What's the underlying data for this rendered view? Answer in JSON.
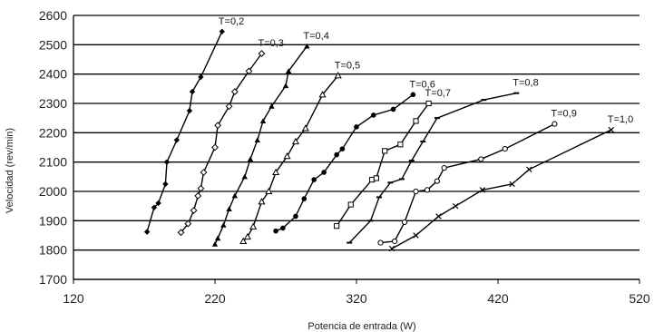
{
  "chart_data": {
    "type": "line",
    "xlabel": "Potencia de entrada (W)",
    "ylabel": "Velocidad (rev/min)",
    "xlim": [
      120,
      520
    ],
    "ylim": [
      1700,
      2600
    ],
    "x_ticks": [
      120,
      220,
      320,
      420,
      520
    ],
    "y_ticks": [
      1700,
      1800,
      1900,
      2000,
      2100,
      2200,
      2300,
      2400,
      2500,
      2600
    ],
    "grid": "horizontal",
    "series": [
      {
        "name": "T=0,2",
        "marker": "diamond-filled",
        "points": [
          [
            172,
            1862
          ],
          [
            177,
            1945
          ],
          [
            180,
            1960
          ],
          [
            185,
            2025
          ],
          [
            186,
            2100
          ],
          [
            193,
            2175
          ],
          [
            202,
            2275
          ],
          [
            204,
            2340
          ],
          [
            210,
            2390
          ],
          [
            225,
            2545
          ]
        ]
      },
      {
        "name": "T=0,3",
        "marker": "diamond-open",
        "points": [
          [
            196,
            1860
          ],
          [
            201,
            1890
          ],
          [
            205,
            1935
          ],
          [
            208,
            1985
          ],
          [
            210,
            2010
          ],
          [
            212,
            2065
          ],
          [
            220,
            2150
          ],
          [
            222,
            2225
          ],
          [
            230,
            2290
          ],
          [
            234,
            2340
          ],
          [
            244,
            2410
          ],
          [
            253,
            2470
          ]
        ]
      },
      {
        "name": "T=0,4",
        "marker": "triangle-filled",
        "points": [
          [
            220,
            1820
          ],
          [
            222,
            1840
          ],
          [
            226,
            1885
          ],
          [
            230,
            1940
          ],
          [
            234,
            1985
          ],
          [
            241,
            2050
          ],
          [
            245,
            2110
          ],
          [
            250,
            2175
          ],
          [
            254,
            2240
          ],
          [
            260,
            2290
          ],
          [
            270,
            2360
          ],
          [
            272,
            2410
          ],
          [
            285,
            2495
          ]
        ]
      },
      {
        "name": "T=0,5",
        "marker": "triangle-open",
        "points": [
          [
            240,
            1830
          ],
          [
            243,
            1845
          ],
          [
            247,
            1880
          ],
          [
            253,
            1965
          ],
          [
            258,
            2000
          ],
          [
            263,
            2065
          ],
          [
            271,
            2120
          ],
          [
            277,
            2170
          ],
          [
            284,
            2215
          ],
          [
            296,
            2330
          ],
          [
            307,
            2395
          ]
        ]
      },
      {
        "name": "T=0,6",
        "marker": "circle-filled",
        "points": [
          [
            263,
            1865
          ],
          [
            268,
            1875
          ],
          [
            277,
            1915
          ],
          [
            283,
            1975
          ],
          [
            290,
            2040
          ],
          [
            297,
            2065
          ],
          [
            306,
            2125
          ],
          [
            310,
            2145
          ],
          [
            320,
            2220
          ],
          [
            332,
            2260
          ],
          [
            346,
            2280
          ],
          [
            360,
            2330
          ]
        ]
      },
      {
        "name": "T=0,7",
        "marker": "square-open",
        "points": [
          [
            306,
            1882
          ],
          [
            316,
            1955
          ],
          [
            331,
            2040
          ],
          [
            334,
            2045
          ],
          [
            340,
            2138
          ],
          [
            351,
            2160
          ],
          [
            362,
            2240
          ],
          [
            371,
            2300
          ]
        ]
      },
      {
        "name": "T=0,8",
        "marker": "dash",
        "points": [
          [
            315,
            1825
          ],
          [
            330,
            1900
          ],
          [
            336,
            1980
          ],
          [
            344,
            2030
          ],
          [
            352,
            2042
          ],
          [
            359,
            2105
          ],
          [
            367,
            2170
          ],
          [
            377,
            2250
          ],
          [
            410,
            2312
          ],
          [
            433,
            2335
          ]
        ]
      },
      {
        "name": "T=0,9",
        "marker": "circle-open",
        "points": [
          [
            337,
            1825
          ],
          [
            347,
            1830
          ],
          [
            354,
            1895
          ],
          [
            362,
            2000
          ],
          [
            370,
            2005
          ],
          [
            377,
            2035
          ],
          [
            382,
            2080
          ],
          [
            408,
            2110
          ],
          [
            425,
            2145
          ],
          [
            460,
            2230
          ]
        ]
      },
      {
        "name": "T=1,0",
        "marker": "x",
        "points": [
          [
            345,
            1805
          ],
          [
            362,
            1850
          ],
          [
            378,
            1915
          ],
          [
            390,
            1950
          ],
          [
            409,
            2005
          ],
          [
            430,
            2025
          ],
          [
            442,
            2075
          ],
          [
            500,
            2210
          ]
        ]
      }
    ]
  }
}
